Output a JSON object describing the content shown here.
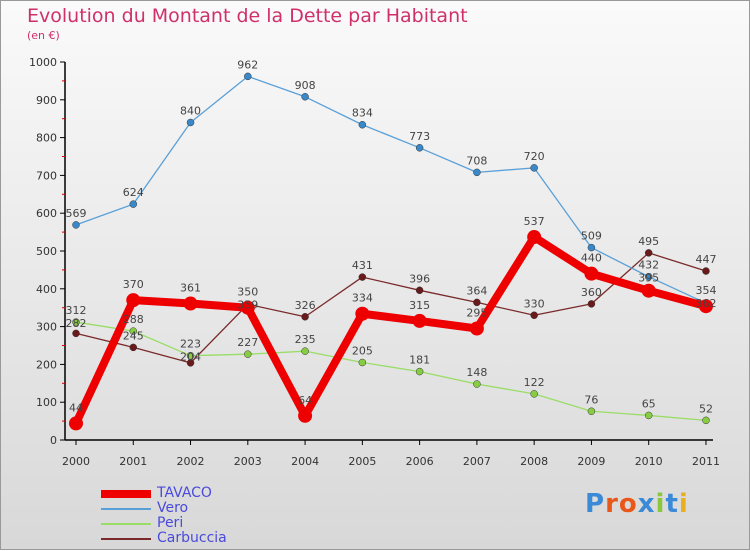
{
  "title": "Evolution du Montant de la Dette par Habitant",
  "subtitle": "(en €)",
  "logo": "Proxiti",
  "chart_data": {
    "type": "line",
    "title": "Evolution du Montant de la Dette par Habitant",
    "ylabel": "(en €)",
    "ylim": [
      0,
      1000
    ],
    "yticks": [
      0,
      100,
      200,
      300,
      400,
      500,
      600,
      700,
      800,
      900,
      1000
    ],
    "x": [
      "2000",
      "2001",
      "2002",
      "2003",
      "2004",
      "2005",
      "2006",
      "2007",
      "2008",
      "2009",
      "2010",
      "2011"
    ],
    "series": [
      {
        "name": "TAVACO",
        "color": "#ee0000",
        "width": 8,
        "values": [
          44,
          370,
          361,
          350,
          64,
          334,
          315,
          295,
          537,
          440,
          395,
          354
        ]
      },
      {
        "name": "Vero",
        "color": "#5aa0d8",
        "width": 1.3,
        "dot": "#3a88c8",
        "values": [
          569,
          624,
          840,
          962,
          908,
          834,
          773,
          708,
          720,
          509,
          432,
          362
        ]
      },
      {
        "name": "Peri",
        "color": "#99dd66",
        "width": 1.3,
        "dot": "#88cc44",
        "values": [
          312,
          288,
          223,
          227,
          235,
          205,
          181,
          148,
          122,
          76,
          65,
          52
        ]
      },
      {
        "name": "Carbuccia",
        "color": "#7a2a2a",
        "width": 1.3,
        "dot": "#6a1a1a",
        "values": [
          282,
          245,
          204,
          359,
          326,
          431,
          396,
          364,
          330,
          360,
          495,
          447
        ]
      }
    ]
  }
}
